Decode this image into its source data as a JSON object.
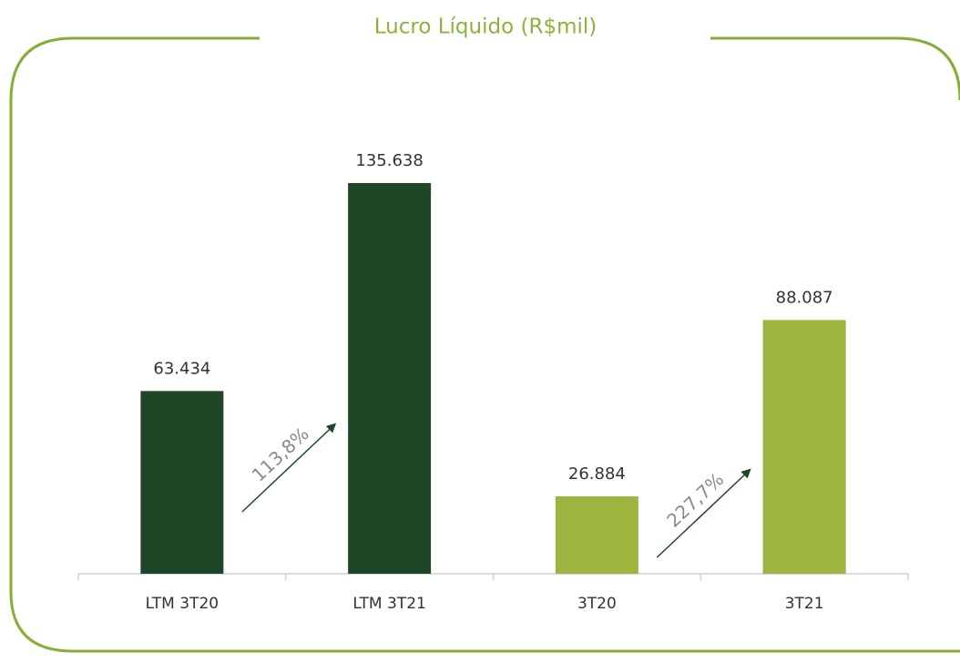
{
  "chart_data": {
    "type": "bar",
    "title": "Lucro Líquido (R$mil)",
    "categories": [
      "LTM 3T20",
      "LTM 3T21",
      "3T20",
      "3T21"
    ],
    "values": [
      63434,
      135638,
      26884,
      88087
    ],
    "value_labels": [
      "63.434",
      "135.638",
      "26.884",
      "88.087"
    ],
    "colors": [
      "#1f4727",
      "#1f4727",
      "#9bb53e",
      "#9bb53e"
    ],
    "annotations": [
      {
        "text": "113,8%",
        "from": 0,
        "to": 1
      },
      {
        "text": "227,7%",
        "from": 2,
        "to": 3
      }
    ]
  }
}
